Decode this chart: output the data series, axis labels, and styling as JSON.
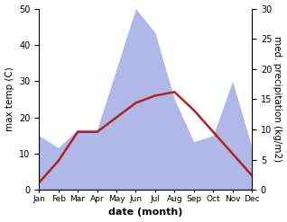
{
  "months": [
    "Jan",
    "Feb",
    "Mar",
    "Apr",
    "May",
    "Jun",
    "Jul",
    "Aug",
    "Sep",
    "Oct",
    "Nov",
    "Dec"
  ],
  "temp": [
    2,
    8,
    16,
    16,
    20,
    24,
    26,
    27,
    22,
    16,
    10,
    4
  ],
  "precip": [
    9,
    7,
    10,
    10,
    20,
    30,
    26,
    15,
    8,
    9,
    18,
    7
  ],
  "temp_color": "#b22222",
  "precip_fill_color": "#b0b8e8",
  "left_label": "max temp (C)",
  "right_label": "med. precipitation (kg/m2)",
  "xlabel": "date (month)",
  "left_ylim": [
    0,
    50
  ],
  "right_ylim": [
    0,
    30
  ],
  "left_yticks": [
    0,
    10,
    20,
    30,
    40,
    50
  ],
  "right_yticks": [
    0,
    5,
    10,
    15,
    20,
    25,
    30
  ],
  "temp_lw": 1.8,
  "figsize": [
    3.18,
    2.47
  ],
  "dpi": 100
}
